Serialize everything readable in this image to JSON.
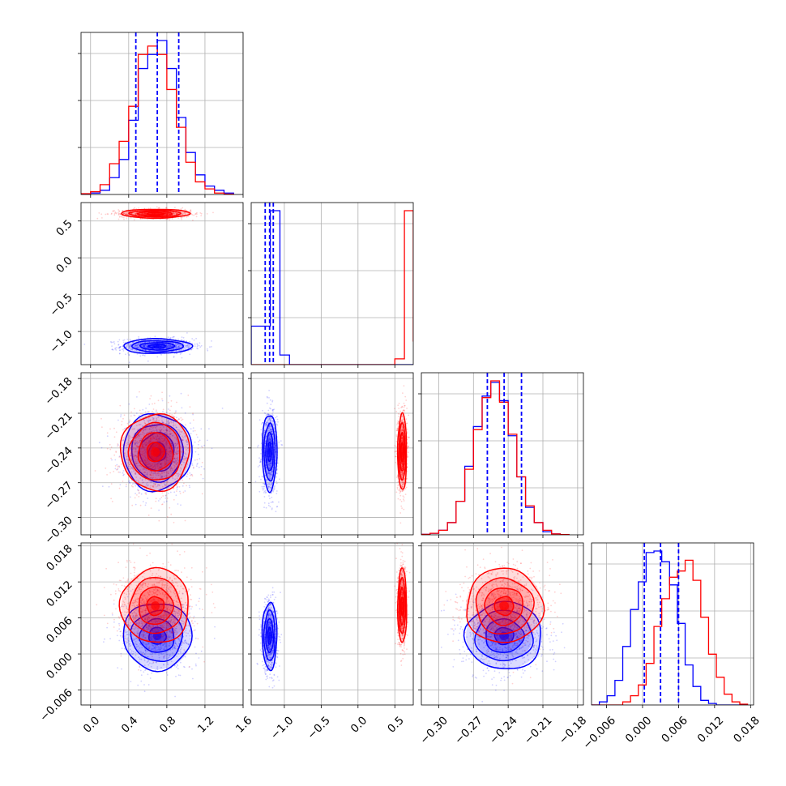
{
  "chart_data": {
    "type": "corner",
    "title": "",
    "series": [
      {
        "name": "",
        "color": "#0000ff"
      },
      {
        "name": "",
        "color": "#ff0000"
      }
    ],
    "parameters": [
      {
        "id": "p0",
        "label": "",
        "range": [
          -0.1,
          1.6
        ],
        "ticks": [
          0.0,
          0.4,
          0.8,
          1.2,
          1.6
        ],
        "tick_labels": [
          "0.0",
          "0.4",
          "0.8",
          "1.2",
          "1.6"
        ],
        "blue": {
          "mean": 0.7,
          "sd": 0.18
        },
        "red": {
          "mean": 0.68,
          "sd": 0.18
        }
      },
      {
        "id": "p1",
        "label": "",
        "range": [
          -1.45,
          0.75
        ],
        "ticks": [
          -1.0,
          -0.5,
          0.0,
          0.5
        ],
        "tick_labels": [
          "−1.0",
          "−0.5",
          "0.0",
          "0.5"
        ],
        "blue": {
          "mean": -1.2,
          "sd": 0.05
        },
        "red": {
          "mean": 0.6,
          "sd": 0.03
        }
      },
      {
        "id": "p2",
        "label": "",
        "range": [
          -0.315,
          -0.175
        ],
        "ticks": [
          -0.3,
          -0.27,
          -0.24,
          -0.21,
          -0.18
        ],
        "tick_labels": [
          "−0.30",
          "−0.27",
          "−0.24",
          "−0.21",
          "−0.18"
        ],
        "blue": {
          "mean": -0.2435,
          "sd": 0.0165
        },
        "red": {
          "mean": -0.2435,
          "sd": 0.0165
        }
      },
      {
        "id": "p3",
        "label": "",
        "range": [
          -0.0085,
          0.0185
        ],
        "ticks": [
          -0.006,
          0.0,
          0.006,
          0.012,
          0.018
        ],
        "tick_labels": [
          "−0.006",
          "0.000",
          "0.006",
          "0.012",
          "0.018"
        ],
        "blue": {
          "mean": 0.003,
          "sd": 0.0028
        },
        "red": {
          "mean": 0.008,
          "sd": 0.0031
        }
      }
    ],
    "quantile_lines": [
      [
        0.475,
        0.7,
        0.925
      ],
      [
        -1.26,
        -1.2,
        -1.15
      ],
      [
        -0.258,
        -0.2435,
        -0.2285
      ],
      [
        0.0003,
        0.003,
        0.006
      ]
    ],
    "histograms": {
      "p0": {
        "bin_edges": [
          -0.1,
          -0.0,
          0.1,
          0.2,
          0.3,
          0.4,
          0.5,
          0.6,
          0.7,
          0.8,
          0.9,
          1.0,
          1.1,
          1.2,
          1.3,
          1.4,
          1.5
        ],
        "blue": [
          0.3,
          1,
          3,
          12,
          25,
          53,
          90,
          100,
          110,
          90,
          55,
          30,
          14,
          6,
          3,
          1
        ],
        "red": [
          0.6,
          2,
          7,
          22,
          38,
          63,
          100,
          106,
          100,
          75,
          48,
          23,
          9,
          4,
          1,
          0.3
        ]
      },
      "p1": {
        "bin_edges": [
          -1.45,
          -1.32,
          -1.19,
          -1.06,
          -0.93,
          -0.8,
          -0.67,
          -0.54,
          -0.41,
          -0.28,
          -0.15,
          -0.02,
          0.11,
          0.24,
          0.37,
          0.5,
          0.63,
          0.75
        ],
        "blue": [
          2,
          2,
          8,
          0.5,
          0,
          0,
          0,
          0,
          0,
          0,
          0,
          0,
          0,
          0,
          0,
          0,
          0
        ],
        "red": [
          0,
          0,
          0,
          0,
          0,
          0,
          0,
          0,
          0,
          0,
          0,
          0,
          0,
          0,
          0,
          0.3,
          8,
          1.2
        ]
      },
      "p2": {
        "bin_edges": [
          -0.315,
          -0.3075,
          -0.3,
          -0.2925,
          -0.285,
          -0.2775,
          -0.27,
          -0.2625,
          -0.255,
          -0.2475,
          -0.24,
          -0.2325,
          -0.225,
          -0.2175,
          -0.21,
          -0.2025,
          -0.195,
          -0.1875,
          -0.18
        ],
        "blue": [
          0.3,
          1,
          3,
          8,
          22,
          45,
          71,
          91,
          100,
          88,
          65,
          38,
          18,
          8,
          2,
          0.6,
          0.2
        ],
        "red": [
          0.3,
          1,
          3,
          8,
          22,
          43,
          69,
          90,
          101,
          87,
          66,
          38,
          19,
          8,
          3,
          0.6,
          0.2
        ]
      },
      "p3": {
        "bin_edges": [
          -0.0085,
          -0.0072,
          -0.0059,
          -0.0046,
          -0.0033,
          -0.002,
          -0.0007,
          0.0006,
          0.0019,
          0.0032,
          0.0045,
          0.0058,
          0.0071,
          0.0084,
          0.0097,
          0.011,
          0.0123,
          0.0136,
          0.0149,
          0.0162,
          0.0175
        ],
        "blue": [
          0,
          2,
          6,
          16,
          38,
          62,
          80,
          99,
          100,
          93,
          78,
          53,
          26,
          12,
          3,
          1,
          0,
          0,
          0,
          0
        ],
        "red": [
          0,
          0,
          0,
          0,
          2,
          6,
          13,
          27,
          51,
          69,
          83,
          87,
          94,
          81,
          57,
          33,
          18,
          7,
          2,
          0.5
        ]
      }
    },
    "grid": true
  }
}
